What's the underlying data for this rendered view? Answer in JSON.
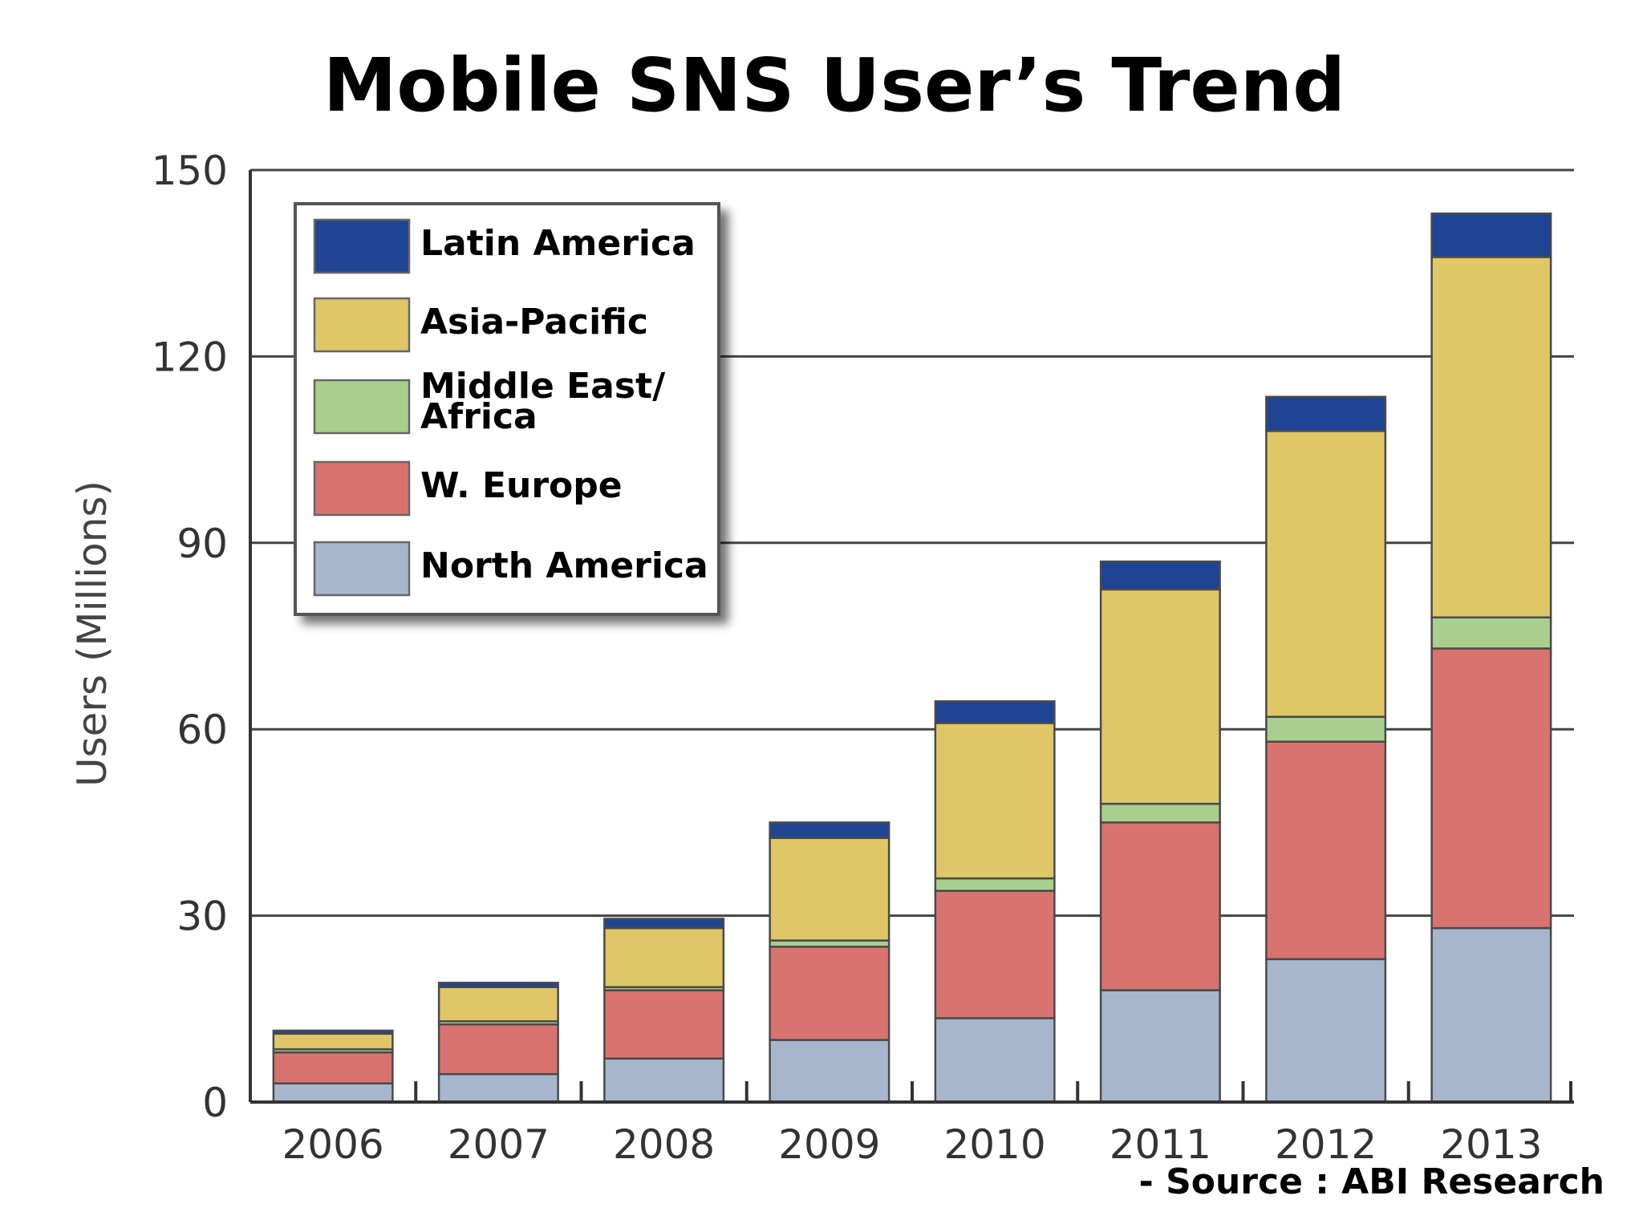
{
  "chart_data": {
    "type": "bar",
    "stacked": true,
    "title": "Mobile SNS User’s Trend",
    "ylabel": "Users (Millions)",
    "xlabel": "",
    "ylim": [
      0,
      150
    ],
    "yticks": [
      0,
      30,
      60,
      90,
      120,
      150
    ],
    "grid": true,
    "legend_position": "top-left",
    "categories": [
      "2006",
      "2007",
      "2008",
      "2009",
      "2010",
      "2011",
      "2012",
      "2013"
    ],
    "series": [
      {
        "name": "North America",
        "color": "#a7b6cd",
        "values": [
          3,
          4.5,
          7,
          10,
          13.5,
          18,
          23,
          28
        ]
      },
      {
        "name": "W. Europe",
        "color": "#d97370",
        "values": [
          5,
          8,
          11,
          15,
          20.5,
          27,
          35,
          45
        ]
      },
      {
        "name": "Middle East/ Africa",
        "color": "#a9cf8f",
        "values": [
          0.5,
          0.5,
          0.5,
          1,
          2,
          3,
          4,
          5
        ]
      },
      {
        "name": "Asia-Pacific",
        "color": "#dfc767",
        "values": [
          2.5,
          5.5,
          9.5,
          16.5,
          25,
          34.5,
          46,
          58
        ]
      },
      {
        "name": "Latin America",
        "color": "#1f4494",
        "values": [
          0.5,
          0.7,
          1.5,
          2.5,
          3.5,
          4.5,
          5.5,
          7
        ]
      }
    ],
    "legend_order": [
      "Latin America",
      "Asia-Pacific",
      "Middle East/ Africa",
      "W. Europe",
      "North America"
    ],
    "legend_lines": {
      "Middle East/ Africa": [
        "Middle East/",
        "Africa"
      ]
    },
    "source": "- Source : ABI Research"
  }
}
